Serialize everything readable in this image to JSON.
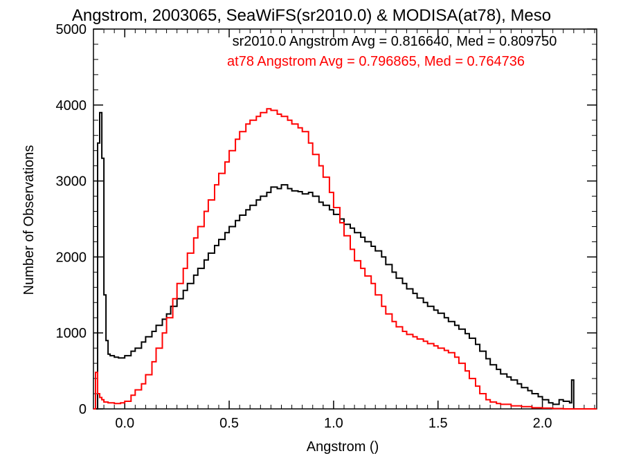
{
  "chart_data": {
    "type": "line",
    "title": "Angstrom, 2003065, SeaWiFS(sr2010.0) & MODISA(at78), Meso",
    "xlabel": "Angstrom ()",
    "ylabel": "Number of Observations",
    "xlim": [
      -0.15,
      2.26
    ],
    "ylim": [
      0,
      5000
    ],
    "x_ticks": [
      0.0,
      0.5,
      1.0,
      1.5,
      2.0
    ],
    "x_tick_labels": [
      "0.0",
      "0.5",
      "1.0",
      "1.5",
      "2.0"
    ],
    "y_ticks": [
      0,
      1000,
      2000,
      3000,
      4000,
      5000
    ],
    "y_tick_labels": [
      "0",
      "1000",
      "2000",
      "3000",
      "4000",
      "5000"
    ],
    "grid": false,
    "annotations": [
      {
        "text": "sr2010.0 Angstrom Avg = 0.816640, Med = 0.809750",
        "color": "#000000"
      },
      {
        "text": "at78 Angstrom Avg = 0.796865, Med = 0.764736",
        "color": "#ff0000"
      }
    ],
    "series": [
      {
        "color": "#000000",
        "points": [
          [
            -0.15,
            0
          ],
          [
            -0.14,
            0
          ],
          [
            -0.13,
            3500
          ],
          [
            -0.12,
            3900
          ],
          [
            -0.11,
            3300
          ],
          [
            -0.1,
            1500
          ],
          [
            -0.09,
            900
          ],
          [
            -0.08,
            720
          ],
          [
            -0.07,
            700
          ],
          [
            -0.05,
            680
          ],
          [
            -0.03,
            670
          ],
          [
            0.0,
            700
          ],
          [
            0.03,
            760
          ],
          [
            0.05,
            800
          ],
          [
            0.08,
            880
          ],
          [
            0.1,
            950
          ],
          [
            0.13,
            1020
          ],
          [
            0.15,
            1100
          ],
          [
            0.18,
            1180
          ],
          [
            0.2,
            1250
          ],
          [
            0.22,
            1350
          ],
          [
            0.25,
            1450
          ],
          [
            0.28,
            1560
          ],
          [
            0.3,
            1650
          ],
          [
            0.33,
            1760
          ],
          [
            0.35,
            1850
          ],
          [
            0.38,
            1960
          ],
          [
            0.4,
            2050
          ],
          [
            0.43,
            2150
          ],
          [
            0.45,
            2230
          ],
          [
            0.48,
            2320
          ],
          [
            0.5,
            2400
          ],
          [
            0.53,
            2480
          ],
          [
            0.55,
            2550
          ],
          [
            0.58,
            2620
          ],
          [
            0.6,
            2680
          ],
          [
            0.63,
            2750
          ],
          [
            0.65,
            2800
          ],
          [
            0.68,
            2850
          ],
          [
            0.7,
            2920
          ],
          [
            0.73,
            2900
          ],
          [
            0.75,
            2950
          ],
          [
            0.78,
            2900
          ],
          [
            0.8,
            2870
          ],
          [
            0.83,
            2860
          ],
          [
            0.85,
            2830
          ],
          [
            0.88,
            2850
          ],
          [
            0.9,
            2800
          ],
          [
            0.93,
            2720
          ],
          [
            0.95,
            2680
          ],
          [
            0.98,
            2620
          ],
          [
            1.0,
            2560
          ],
          [
            1.03,
            2500
          ],
          [
            1.05,
            2430
          ],
          [
            1.08,
            2380
          ],
          [
            1.1,
            2320
          ],
          [
            1.13,
            2260
          ],
          [
            1.15,
            2200
          ],
          [
            1.18,
            2140
          ],
          [
            1.2,
            2080
          ],
          [
            1.23,
            2000
          ],
          [
            1.25,
            1900
          ],
          [
            1.28,
            1800
          ],
          [
            1.3,
            1720
          ],
          [
            1.33,
            1650
          ],
          [
            1.35,
            1580
          ],
          [
            1.38,
            1520
          ],
          [
            1.4,
            1460
          ],
          [
            1.43,
            1400
          ],
          [
            1.45,
            1350
          ],
          [
            1.48,
            1300
          ],
          [
            1.5,
            1260
          ],
          [
            1.53,
            1200
          ],
          [
            1.55,
            1150
          ],
          [
            1.58,
            1100
          ],
          [
            1.6,
            1050
          ],
          [
            1.63,
            990
          ],
          [
            1.65,
            930
          ],
          [
            1.68,
            850
          ],
          [
            1.7,
            760
          ],
          [
            1.73,
            660
          ],
          [
            1.75,
            580
          ],
          [
            1.78,
            520
          ],
          [
            1.8,
            460
          ],
          [
            1.83,
            420
          ],
          [
            1.85,
            380
          ],
          [
            1.88,
            330
          ],
          [
            1.9,
            280
          ],
          [
            1.93,
            240
          ],
          [
            1.95,
            200
          ],
          [
            1.98,
            160
          ],
          [
            2.0,
            120
          ],
          [
            2.03,
            80
          ],
          [
            2.05,
            60
          ],
          [
            2.08,
            120
          ],
          [
            2.1,
            100
          ],
          [
            2.13,
            80
          ],
          [
            2.14,
            380
          ],
          [
            2.15,
            0
          ],
          [
            2.26,
            0
          ]
        ]
      },
      {
        "color": "#ff0000",
        "points": [
          [
            -0.15,
            0
          ],
          [
            -0.14,
            480
          ],
          [
            -0.13,
            200
          ],
          [
            -0.12,
            150
          ],
          [
            -0.11,
            120
          ],
          [
            -0.1,
            90
          ],
          [
            -0.08,
            80
          ],
          [
            -0.05,
            70
          ],
          [
            -0.02,
            80
          ],
          [
            0.0,
            100
          ],
          [
            0.03,
            180
          ],
          [
            0.05,
            250
          ],
          [
            0.08,
            330
          ],
          [
            0.1,
            450
          ],
          [
            0.13,
            620
          ],
          [
            0.15,
            800
          ],
          [
            0.18,
            1000
          ],
          [
            0.2,
            1200
          ],
          [
            0.23,
            1450
          ],
          [
            0.25,
            1650
          ],
          [
            0.28,
            1850
          ],
          [
            0.3,
            2050
          ],
          [
            0.33,
            2250
          ],
          [
            0.35,
            2400
          ],
          [
            0.38,
            2600
          ],
          [
            0.4,
            2750
          ],
          [
            0.43,
            2950
          ],
          [
            0.45,
            3100
          ],
          [
            0.48,
            3250
          ],
          [
            0.5,
            3400
          ],
          [
            0.53,
            3550
          ],
          [
            0.55,
            3650
          ],
          [
            0.58,
            3750
          ],
          [
            0.6,
            3800
          ],
          [
            0.63,
            3850
          ],
          [
            0.65,
            3900
          ],
          [
            0.68,
            3950
          ],
          [
            0.7,
            3930
          ],
          [
            0.73,
            3880
          ],
          [
            0.75,
            3850
          ],
          [
            0.78,
            3800
          ],
          [
            0.8,
            3750
          ],
          [
            0.83,
            3700
          ],
          [
            0.85,
            3650
          ],
          [
            0.88,
            3500
          ],
          [
            0.9,
            3350
          ],
          [
            0.93,
            3200
          ],
          [
            0.95,
            3050
          ],
          [
            0.98,
            2850
          ],
          [
            1.0,
            2650
          ],
          [
            1.03,
            2450
          ],
          [
            1.05,
            2280
          ],
          [
            1.08,
            2100
          ],
          [
            1.1,
            1950
          ],
          [
            1.13,
            1850
          ],
          [
            1.15,
            1750
          ],
          [
            1.18,
            1650
          ],
          [
            1.2,
            1500
          ],
          [
            1.23,
            1350
          ],
          [
            1.25,
            1250
          ],
          [
            1.28,
            1150
          ],
          [
            1.3,
            1080
          ],
          [
            1.33,
            1020
          ],
          [
            1.35,
            980
          ],
          [
            1.38,
            950
          ],
          [
            1.4,
            920
          ],
          [
            1.43,
            890
          ],
          [
            1.45,
            860
          ],
          [
            1.48,
            830
          ],
          [
            1.5,
            800
          ],
          [
            1.53,
            770
          ],
          [
            1.55,
            740
          ],
          [
            1.58,
            680
          ],
          [
            1.6,
            600
          ],
          [
            1.63,
            500
          ],
          [
            1.65,
            400
          ],
          [
            1.68,
            300
          ],
          [
            1.7,
            200
          ],
          [
            1.73,
            120
          ],
          [
            1.75,
            90
          ],
          [
            1.78,
            70
          ],
          [
            1.8,
            60
          ],
          [
            1.85,
            40
          ],
          [
            1.9,
            30
          ],
          [
            1.95,
            15
          ],
          [
            2.0,
            10
          ],
          [
            2.05,
            5
          ],
          [
            2.1,
            0
          ],
          [
            2.26,
            0
          ]
        ]
      }
    ]
  }
}
